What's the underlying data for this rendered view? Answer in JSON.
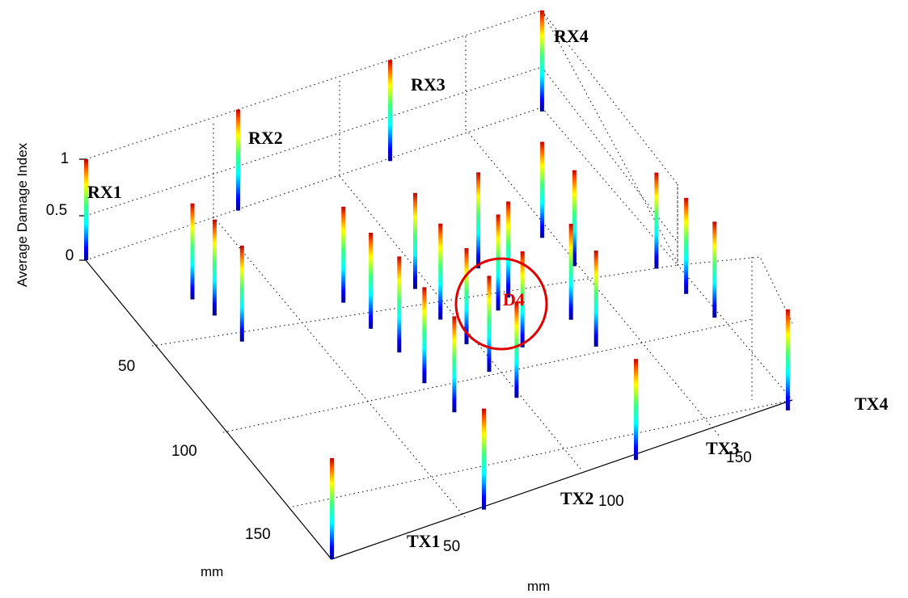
{
  "chart_data": {
    "type": "bar3d",
    "zlabel": "Average Damage Index",
    "xlabel": "mm",
    "ylabel": "mm",
    "x_ticks": [
      "50",
      "100",
      "150"
    ],
    "y_ticks": [
      "50",
      "100",
      "150"
    ],
    "z_ticks": [
      "0",
      "0.5",
      "1"
    ],
    "zlim": [
      0,
      1
    ],
    "grid": true,
    "colormap": "jet",
    "sensor_labels": {
      "receivers": [
        "RX1",
        "RX2",
        "RX3",
        "RX4"
      ],
      "transmitters": [
        "TX1",
        "TX2",
        "TX3",
        "TX4"
      ]
    },
    "damage": {
      "label": "D4",
      "marker": "circle",
      "color": "#e00000"
    },
    "spikes": [
      {
        "name": "spike-rx1",
        "x": 0,
        "y": 0,
        "value": 1.0
      },
      {
        "name": "spike-rx2",
        "x": 65,
        "y": 0,
        "value": 1.0
      },
      {
        "name": "spike-rx3",
        "x": 130,
        "y": 0,
        "value": 1.0
      },
      {
        "name": "spike-rx4",
        "x": 195,
        "y": 0,
        "value": 1.0
      },
      {
        "name": "spike-tx1",
        "x": 0,
        "y": 195,
        "value": 1.0
      },
      {
        "name": "spike-tx2",
        "x": 65,
        "y": 195,
        "value": 1.0
      },
      {
        "name": "spike-tx3",
        "x": 130,
        "y": 195,
        "value": 1.0
      },
      {
        "name": "spike-tx4",
        "x": 195,
        "y": 195,
        "value": 1.0
      },
      {
        "name": "spike-path-1",
        "x": 25,
        "y": 38,
        "value": 0.95
      },
      {
        "name": "spike-path-2",
        "x": 28,
        "y": 50,
        "value": 0.95
      },
      {
        "name": "spike-path-3",
        "x": 30,
        "y": 68,
        "value": 0.95
      },
      {
        "name": "spike-path-4",
        "x": 75,
        "y": 65,
        "value": 0.95
      },
      {
        "name": "spike-path-5",
        "x": 77,
        "y": 83,
        "value": 0.95
      },
      {
        "name": "spike-path-6",
        "x": 80,
        "y": 100,
        "value": 0.95
      },
      {
        "name": "spike-path-7",
        "x": 80,
        "y": 120,
        "value": 0.95
      },
      {
        "name": "spike-path-8",
        "x": 82,
        "y": 140,
        "value": 0.95
      },
      {
        "name": "spike-path-9",
        "x": 103,
        "y": 70,
        "value": 0.95
      },
      {
        "name": "spike-path-10",
        "x": 103,
        "y": 90,
        "value": 0.95
      },
      {
        "name": "spike-path-11",
        "x": 105,
        "y": 107,
        "value": 0.95
      },
      {
        "name": "spike-path-12",
        "x": 105,
        "y": 125,
        "value": 0.95
      },
      {
        "name": "spike-path-13",
        "x": 107,
        "y": 143,
        "value": 0.95
      },
      {
        "name": "spike-path-14",
        "x": 125,
        "y": 95,
        "value": 0.95
      },
      {
        "name": "spike-path-15",
        "x": 123,
        "y": 118,
        "value": 0.95
      },
      {
        "name": "spike-path-16",
        "x": 130,
        "y": 70,
        "value": 0.95
      },
      {
        "name": "spike-path-17",
        "x": 132,
        "y": 90,
        "value": 0.95
      },
      {
        "name": "spike-path-18",
        "x": 160,
        "y": 65,
        "value": 0.95
      },
      {
        "name": "spike-path-19",
        "x": 163,
        "y": 85,
        "value": 0.95
      },
      {
        "name": "spike-path-20",
        "x": 147,
        "y": 112,
        "value": 0.95
      },
      {
        "name": "spike-path-21",
        "x": 148,
        "y": 130,
        "value": 0.95
      },
      {
        "name": "spike-path-22",
        "x": 190,
        "y": 100,
        "value": 0.95
      },
      {
        "name": "spike-path-23",
        "x": 193,
        "y": 118,
        "value": 0.95
      },
      {
        "name": "spike-path-24",
        "x": 196,
        "y": 135,
        "value": 0.95
      }
    ]
  }
}
